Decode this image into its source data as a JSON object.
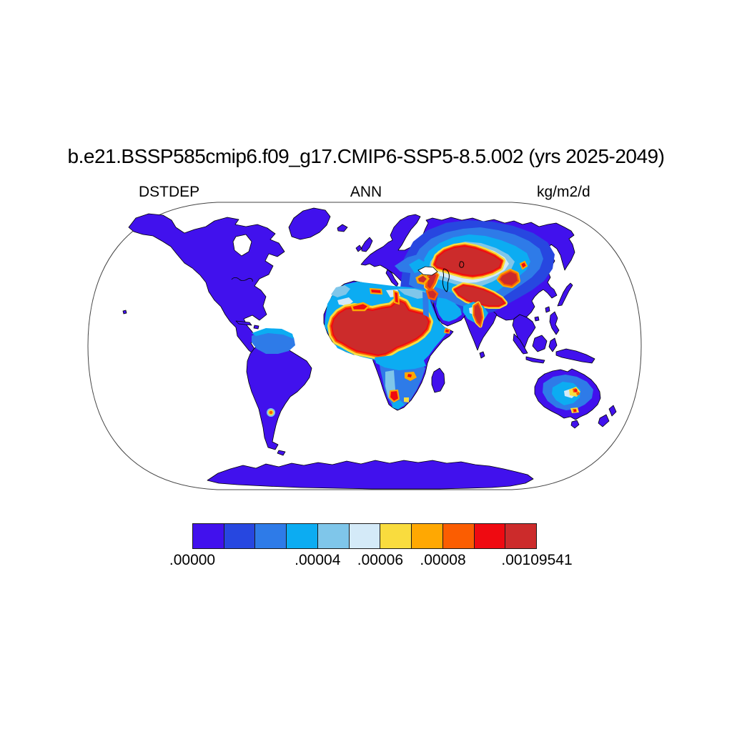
{
  "title": "b.e21.BSSP585cmip6.f09_g17.CMIP6-SSP5-8.5.002 (yrs 2025-2049)",
  "subtitle": {
    "variable": "DSTDEP",
    "season": "ANN",
    "units": "kg/m2/d"
  },
  "colorbar": {
    "colors": [
      "#4111ED",
      "#2747E0",
      "#2E7BE8",
      "#0CACF2",
      "#7FC6EA",
      "#D4EAF8",
      "#F9DC3E",
      "#FFA802",
      "#FB5D01",
      "#EF0A11",
      "#CC2B2B"
    ],
    "tick_labels": [
      ".00000",
      ".00004",
      ".00006",
      ".00008",
      ".00109541"
    ],
    "tick_boundary_index": [
      0,
      4,
      6,
      8,
      11
    ],
    "num_boxes": 11
  },
  "map_colors": {
    "ocean": "#FFFFFF",
    "coastline": "#000000",
    "boundary": "#444444"
  },
  "chart_data": {
    "type": "heatmap",
    "subtype": "filled-contour-world-map",
    "projection": "Robinson",
    "variable": "DSTDEP",
    "statistic": "ANN",
    "units": "kg/m2/d",
    "title": "b.e21.BSSP585cmip6.f09_g17.CMIP6-SSP5-8.5.002 (yrs 2025-2049)",
    "levels": [
      0.0,
      1e-05,
      2e-05,
      3e-05,
      4e-05,
      5e-05,
      6e-05,
      7e-05,
      8e-05,
      9e-05,
      0.0001,
      0.00109541
    ],
    "labeled_levels": [
      ".00000",
      ".00004",
      ".00006",
      ".00008",
      ".00109541"
    ],
    "min_value": 0.0,
    "max_value": 0.00109541,
    "palette": [
      "#4111ED",
      "#2747E0",
      "#2E7BE8",
      "#0CACF2",
      "#7FC6EA",
      "#D4EAF8",
      "#F9DC3E",
      "#FFA802",
      "#FB5D01",
      "#EF0A11",
      "#CC2B2B"
    ],
    "ocean_masked": true,
    "legend_position": "bottom",
    "high_deposition_regions": [
      "Sahara and Sahel",
      "Mesopotamia and Middle East",
      "Caspian / Central Asia belt",
      "Taklamakan-Gobi",
      "Indus Valley",
      "Kalahari-Namibia spots",
      "Central Australia spots",
      "Patagonia spot"
    ],
    "low_deposition_regions": [
      "North America",
      "Greenland",
      "Amazon and most of South America",
      "Northern Siberia",
      "Maritime Southeast Asia",
      "Antarctica",
      "New Zealand"
    ]
  }
}
